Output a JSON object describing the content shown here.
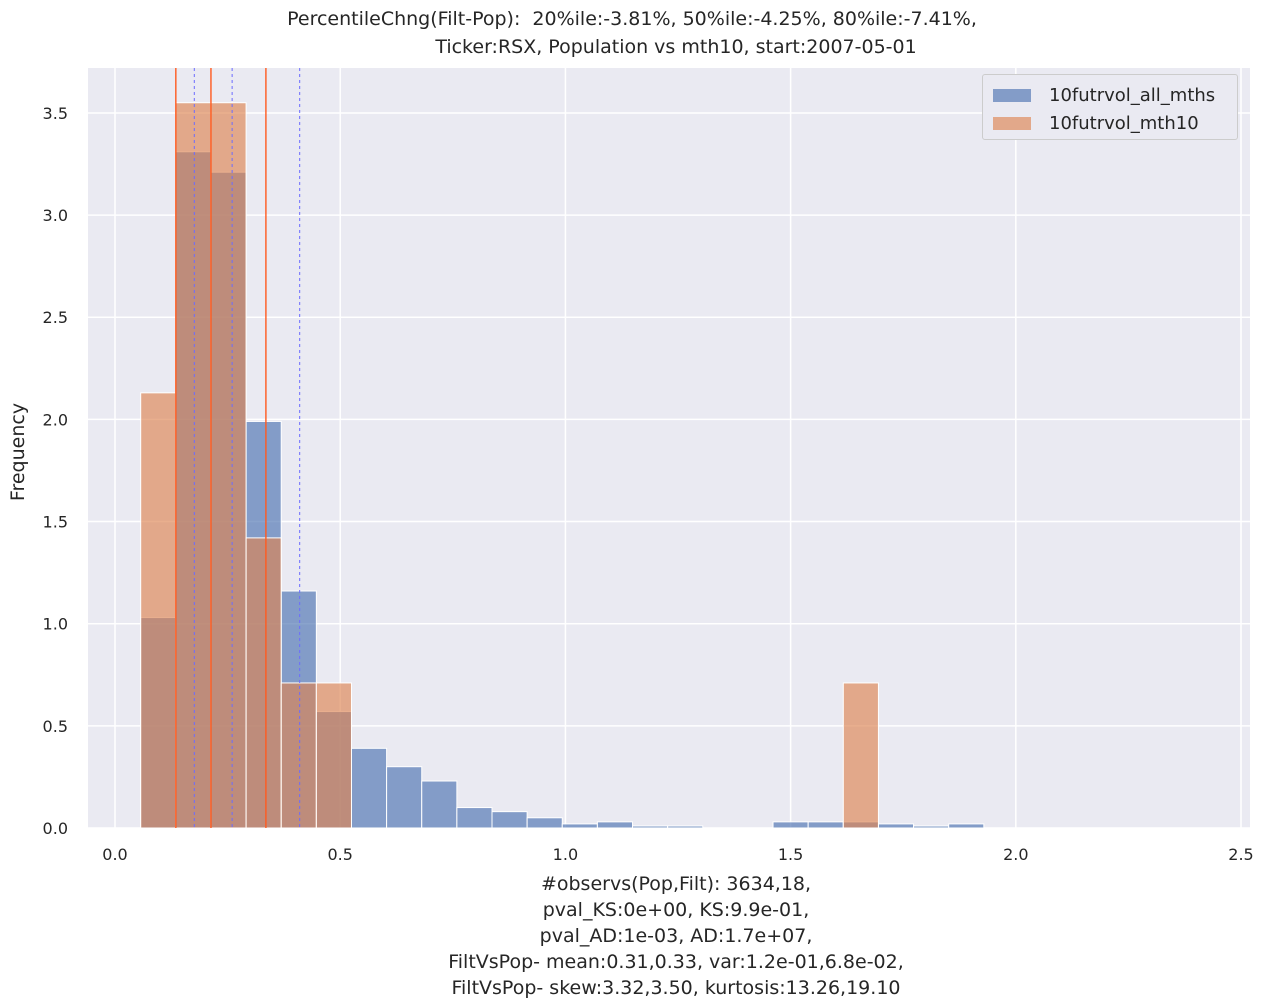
{
  "chart_data": {
    "type": "bar",
    "title_lines": [
      "PercentileChng(Filt-Pop):  20%ile:-3.81%, 50%ile:-4.25%, 80%ile:-7.41%,",
      "Ticker:RSX, Population vs mth10, start:2007-05-01"
    ],
    "ylabel": "Frequency",
    "xlabel_lines": [
      "#observs(Pop,Filt): 3634,18,",
      "pval_KS:0e+00, KS:9.9e-01,",
      "pval_AD:1e-03, AD:1.7e+07,",
      "FiltVsPop- mean:0.31,0.33, var:1.2e-01,6.8e-02,",
      "FiltVsPop- skew:3.32,3.50, kurtosis:13.26,19.10"
    ],
    "xlim": [
      -0.06,
      2.52
    ],
    "ylim": [
      0,
      3.72
    ],
    "xticks": [
      0.0,
      0.5,
      1.0,
      1.5,
      2.0,
      2.5
    ],
    "xtick_labels": [
      "0.0",
      "0.5",
      "1.0",
      "1.5",
      "2.0",
      "2.5"
    ],
    "yticks": [
      0.0,
      0.5,
      1.0,
      1.5,
      2.0,
      2.5,
      3.0,
      3.5
    ],
    "ytick_labels": [
      "0.0",
      "0.5",
      "1.0",
      "1.5",
      "2.0",
      "2.5",
      "3.0",
      "3.5"
    ],
    "grid": true,
    "legend_position": "top-right",
    "series": [
      {
        "name": "10futrvol_all_mths",
        "color": "#4c72b0",
        "bins": [
          [
            0.057,
            0.135,
            1.03
          ],
          [
            0.135,
            0.213,
            3.31
          ],
          [
            0.213,
            0.291,
            3.21
          ],
          [
            0.291,
            0.369,
            1.99
          ],
          [
            0.369,
            0.447,
            1.16
          ],
          [
            0.447,
            0.525,
            0.57
          ],
          [
            0.525,
            0.603,
            0.39
          ],
          [
            0.603,
            0.681,
            0.3
          ],
          [
            0.681,
            0.759,
            0.23
          ],
          [
            0.759,
            0.837,
            0.1
          ],
          [
            0.837,
            0.915,
            0.08
          ],
          [
            0.915,
            0.993,
            0.05
          ],
          [
            0.993,
            1.071,
            0.02
          ],
          [
            1.071,
            1.149,
            0.03
          ],
          [
            1.149,
            1.227,
            0.01
          ],
          [
            1.227,
            1.305,
            0.01
          ],
          [
            1.305,
            1.383,
            0.0
          ],
          [
            1.383,
            1.461,
            0.0
          ],
          [
            1.461,
            1.539,
            0.03
          ],
          [
            1.539,
            1.617,
            0.03
          ],
          [
            1.617,
            1.695,
            0.03
          ],
          [
            1.695,
            1.773,
            0.02
          ],
          [
            1.773,
            1.851,
            0.01
          ],
          [
            1.851,
            1.929,
            0.02
          ]
        ]
      },
      {
        "name": "10futrvol_mth10",
        "color": "#dd8452",
        "bins": [
          [
            0.057,
            0.135,
            2.13
          ],
          [
            0.135,
            0.213,
            3.55
          ],
          [
            0.213,
            0.291,
            3.55
          ],
          [
            0.291,
            0.369,
            1.42
          ],
          [
            0.369,
            0.447,
            0.71
          ],
          [
            0.447,
            0.525,
            0.71
          ],
          [
            1.617,
            1.695,
            0.71
          ]
        ]
      }
    ],
    "vlines_solid": {
      "color": "#ff5a1f",
      "x": [
        0.135,
        0.213,
        0.335
      ]
    },
    "vlines_dashed": {
      "color": "#6b6bff",
      "x": [
        0.176,
        0.26,
        0.41
      ]
    }
  }
}
